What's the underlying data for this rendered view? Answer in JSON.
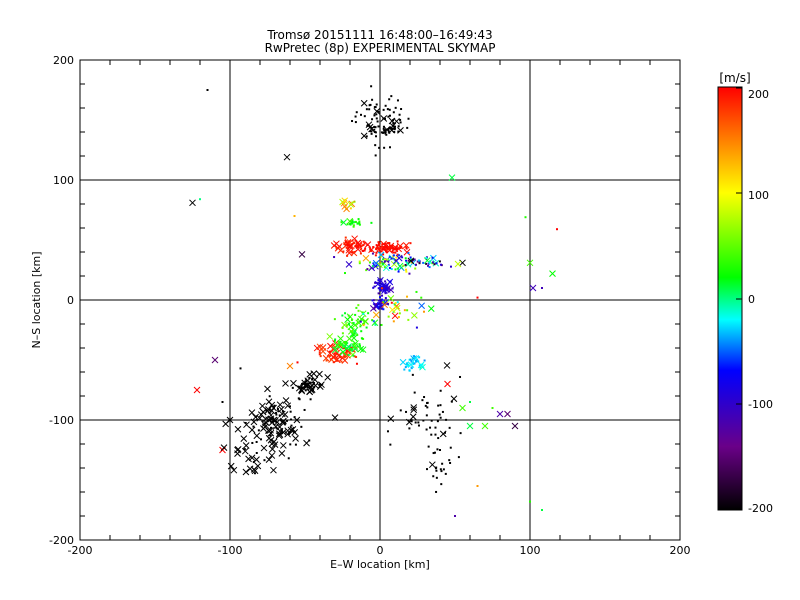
{
  "chart_data": {
    "type": "scatter",
    "title": "Tromsø 20151111 16:48:00–16:49:43",
    "subtitle": "RwPretec (8p) EXPERIMENTAL SKYMAP",
    "xlabel": "E–W location [km]",
    "ylabel": "N–S location [km]",
    "xlim": [
      -200,
      200
    ],
    "ylim": [
      -200,
      200
    ],
    "xticks": [
      "-200",
      "-100",
      "0",
      "100",
      "200"
    ],
    "yticks": [
      "-200",
      "-100",
      "0",
      "100",
      "200"
    ],
    "grid": true,
    "colorbar": {
      "label": "[m/s]",
      "range": [
        -200,
        200
      ],
      "ticks": [
        "200",
        "100",
        "0",
        "-100",
        "-200"
      ],
      "colormap": [
        "#000000",
        "#6a0088",
        "#0000ff",
        "#00ffff",
        "#00ff00",
        "#ffff00",
        "#ff0000"
      ]
    },
    "clusters": [
      {
        "cx": 0,
        "cy": 150,
        "sx": 15,
        "sy": 18,
        "n": 70,
        "vmin": -200,
        "vmax": -200,
        "xfrac": 0.15
      },
      {
        "cx": 3,
        "cy": 142,
        "sx": 10,
        "sy": 3,
        "n": 30,
        "vmin": -200,
        "vmax": -200,
        "xfrac": 0.1
      },
      {
        "cx": 5,
        "cy": 43,
        "sx": 12,
        "sy": 4,
        "n": 90,
        "vmin": 190,
        "vmax": 200,
        "xfrac": 0.15
      },
      {
        "cx": -20,
        "cy": 45,
        "sx": 8,
        "sy": 5,
        "n": 40,
        "vmin": 180,
        "vmax": 200,
        "xfrac": 0.4
      },
      {
        "cx": -18,
        "cy": 65,
        "sx": 6,
        "sy": 3,
        "n": 25,
        "vmin": 10,
        "vmax": 40,
        "xfrac": 0.2
      },
      {
        "cx": -22,
        "cy": 78,
        "sx": 5,
        "sy": 4,
        "n": 12,
        "vmin": 40,
        "vmax": 160,
        "xfrac": 0.5
      },
      {
        "cx": 5,
        "cy": 32,
        "sx": 20,
        "sy": 6,
        "n": 70,
        "vmin": -130,
        "vmax": 140,
        "xfrac": 0.3
      },
      {
        "cx": 25,
        "cy": 32,
        "sx": 15,
        "sy": 4,
        "n": 35,
        "vmin": -200,
        "vmax": 0,
        "xfrac": 0.1
      },
      {
        "cx": 2,
        "cy": 10,
        "sx": 5,
        "sy": 6,
        "n": 45,
        "vmin": -120,
        "vmax": -80,
        "xfrac": 0.3
      },
      {
        "cx": 0,
        "cy": -3,
        "sx": 5,
        "sy": 4,
        "n": 35,
        "vmin": -130,
        "vmax": -60,
        "xfrac": 0.2
      },
      {
        "cx": -18,
        "cy": -20,
        "sx": 10,
        "sy": 14,
        "n": 55,
        "vmin": 10,
        "vmax": 60,
        "xfrac": 0.2
      },
      {
        "cx": -28,
        "cy": -45,
        "sx": 10,
        "sy": 6,
        "n": 55,
        "vmin": 170,
        "vmax": 200,
        "xfrac": 0.6
      },
      {
        "cx": -22,
        "cy": -38,
        "sx": 8,
        "sy": 6,
        "n": 40,
        "vmin": 0,
        "vmax": 40,
        "xfrac": 0.3
      },
      {
        "cx": 22,
        "cy": -52,
        "sx": 6,
        "sy": 5,
        "n": 35,
        "vmin": -40,
        "vmax": -10,
        "xfrac": 0.2
      },
      {
        "cx": -48,
        "cy": -72,
        "sx": 8,
        "sy": 10,
        "n": 50,
        "vmin": -200,
        "vmax": -200,
        "xfrac": 0.5
      },
      {
        "cx": -70,
        "cy": -105,
        "sx": 14,
        "sy": 18,
        "n": 110,
        "vmin": -200,
        "vmax": -200,
        "xfrac": 0.6
      },
      {
        "cx": -88,
        "cy": -135,
        "sx": 10,
        "sy": 15,
        "n": 20,
        "vmin": -200,
        "vmax": -200,
        "xfrac": 0.8
      },
      {
        "cx": 35,
        "cy": -100,
        "sx": 18,
        "sy": 25,
        "n": 50,
        "vmin": -200,
        "vmax": -200,
        "xfrac": 0.2
      },
      {
        "cx": 40,
        "cy": -140,
        "sx": 12,
        "sy": 15,
        "n": 20,
        "vmin": -200,
        "vmax": -200,
        "xfrac": 0.1
      },
      {
        "cx": 10,
        "cy": -10,
        "sx": 15,
        "sy": 14,
        "n": 35,
        "vmin": -100,
        "vmax": 200,
        "xfrac": 0.3
      }
    ],
    "points": [
      {
        "x": -115,
        "y": 175,
        "v": -200,
        "m": "dot"
      },
      {
        "x": -62,
        "y": 119,
        "v": -200,
        "m": "x"
      },
      {
        "x": -125,
        "y": 81,
        "v": -200,
        "m": "x"
      },
      {
        "x": -120,
        "y": 84,
        "v": 0,
        "m": "dot"
      },
      {
        "x": 48,
        "y": 102,
        "v": 10,
        "m": "x"
      },
      {
        "x": -57,
        "y": 70,
        "v": 130,
        "m": "dot"
      },
      {
        "x": -52,
        "y": 38,
        "v": -170,
        "m": "x"
      },
      {
        "x": 97,
        "y": 69,
        "v": 30,
        "m": "dot"
      },
      {
        "x": 118,
        "y": 59,
        "v": 200,
        "m": "dot"
      },
      {
        "x": 100,
        "y": 31,
        "v": 40,
        "m": "x"
      },
      {
        "x": 115,
        "y": 22,
        "v": 20,
        "m": "x"
      },
      {
        "x": 102,
        "y": 10,
        "v": -110,
        "m": "x"
      },
      {
        "x": 108,
        "y": 10,
        "v": -110,
        "m": "dot"
      },
      {
        "x": 65,
        "y": 2,
        "v": 200,
        "m": "dot"
      },
      {
        "x": 55,
        "y": 31,
        "v": -200,
        "m": "x"
      },
      {
        "x": 52,
        "y": 30,
        "v": 80,
        "m": "x"
      },
      {
        "x": -122,
        "y": -75,
        "v": 200,
        "m": "x"
      },
      {
        "x": -110,
        "y": -50,
        "v": -150,
        "m": "x"
      },
      {
        "x": -93,
        "y": -57,
        "v": -200,
        "m": "dot"
      },
      {
        "x": -105,
        "y": -85,
        "v": -200,
        "m": "dot"
      },
      {
        "x": -100,
        "y": -100,
        "v": -200,
        "m": "x"
      },
      {
        "x": -105,
        "y": -125,
        "v": 200,
        "m": "x"
      },
      {
        "x": -104,
        "y": -123,
        "v": -200,
        "m": "x"
      },
      {
        "x": -95,
        "y": -125,
        "v": -200,
        "m": "x"
      },
      {
        "x": -30,
        "y": -98,
        "v": -200,
        "m": "x"
      },
      {
        "x": 45,
        "y": -70,
        "v": 200,
        "m": "x"
      },
      {
        "x": 55,
        "y": -90,
        "v": 40,
        "m": "x"
      },
      {
        "x": 60,
        "y": -105,
        "v": 10,
        "m": "x"
      },
      {
        "x": 70,
        "y": -105,
        "v": 40,
        "m": "x"
      },
      {
        "x": 75,
        "y": -90,
        "v": 40,
        "m": "dot"
      },
      {
        "x": 85,
        "y": -95,
        "v": -150,
        "m": "x"
      },
      {
        "x": 90,
        "y": -105,
        "v": -170,
        "m": "x"
      },
      {
        "x": 80,
        "y": -95,
        "v": -120,
        "m": "x"
      },
      {
        "x": 65,
        "y": -155,
        "v": 140,
        "m": "dot"
      },
      {
        "x": 50,
        "y": -180,
        "v": -120,
        "m": "dot"
      },
      {
        "x": 100,
        "y": -168,
        "v": 30,
        "m": "dot"
      },
      {
        "x": 108,
        "y": -175,
        "v": 10,
        "m": "dot"
      },
      {
        "x": 40,
        "y": -125,
        "v": -200,
        "m": "dot"
      },
      {
        "x": 60,
        "y": -85,
        "v": 10,
        "m": "dot"
      },
      {
        "x": -55,
        "y": -52,
        "v": 200,
        "m": "dot"
      },
      {
        "x": -60,
        "y": -55,
        "v": 150,
        "m": "x"
      }
    ]
  }
}
